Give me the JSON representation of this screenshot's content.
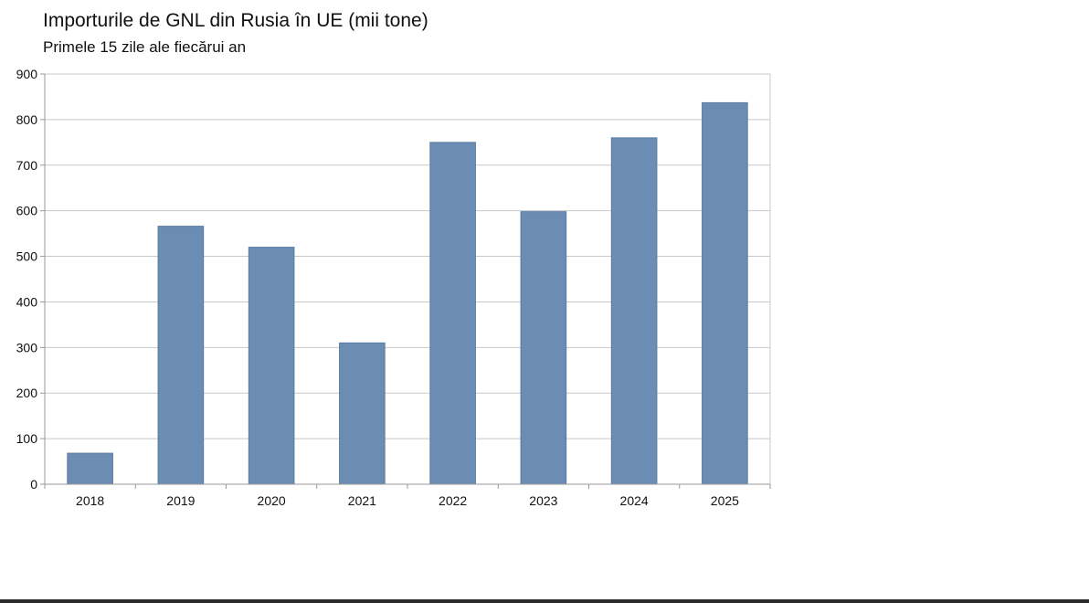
{
  "chart_data": {
    "type": "bar",
    "title": "Importurile de GNL din Rusia în UE (mii tone)",
    "subtitle": "Primele 15 zile ale fiecărui an",
    "xlabel": "",
    "ylabel": "",
    "categories": [
      "2018",
      "2019",
      "2020",
      "2021",
      "2022",
      "2023",
      "2024",
      "2025"
    ],
    "values": [
      68,
      566,
      520,
      310,
      750,
      598,
      760,
      837
    ],
    "ylim": [
      0,
      900
    ],
    "yticks": [
      "0",
      "100",
      "200",
      "300",
      "400",
      "500",
      "600",
      "700",
      "800",
      "900"
    ],
    "grid": true,
    "legend": "none",
    "bar_color": "#6b8db4"
  }
}
